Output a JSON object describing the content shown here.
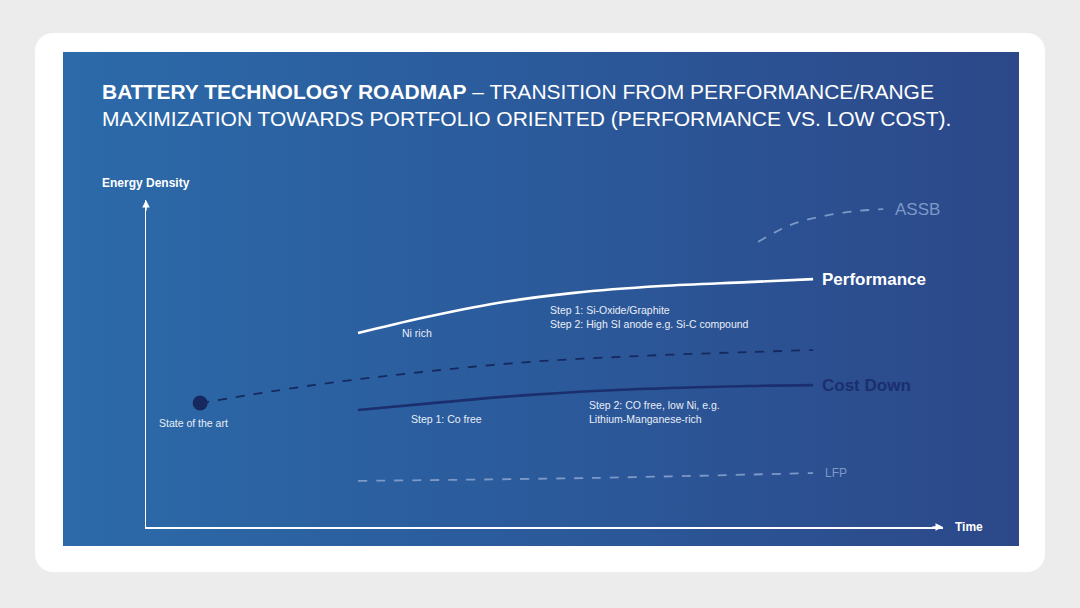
{
  "chart_data": {
    "type": "line",
    "title": "BATTERY TECHNOLOGY ROADMAP – TRANSITION FROM PERFORMANCE/RANGE\nMAXIMIZATION TOWARDS PORTFOLIO ORIENTED (PERFORMANCE VS. LOW COST).",
    "x_label": "Time",
    "y_label": "Energy Density",
    "xlim": [
      0,
      100
    ],
    "ylim": [
      0,
      100
    ],
    "xticks": [],
    "yticks": [],
    "tick_labels": false,
    "grid": false,
    "series": [
      {
        "name": "ASSB",
        "color": "#7c99c8",
        "line_style": "dashed",
        "x": [
          76.8,
          80.9,
          85.0,
          89.1,
          92.5
        ],
        "values": [
          87.2,
          92.4,
          95.1,
          96.6,
          97.2
        ]
      },
      {
        "name": "Performance",
        "color": "#ffffff",
        "line_style": "solid",
        "x": [
          26.6,
          34.6,
          44.1,
          53.7,
          64.6,
          75.5,
          83.7
        ],
        "values": [
          59.3,
          63.9,
          68.5,
          71.6,
          73.7,
          74.9,
          75.8
        ]
      },
      {
        "color": "#16295f",
        "line_style": "dashed",
        "x": [
          6.8,
          21.0,
          34.6,
          48.2,
          61.9,
          75.5,
          83.7
        ],
        "values": [
          37.9,
          43.4,
          47.4,
          50.5,
          52.3,
          53.5,
          54.1
        ]
      },
      {
        "color": "#16295f",
        "line_style": "none",
        "marker": "circle",
        "x": [
          6.8
        ],
        "values": [
          37.9
        ]
      },
      {
        "name": "Cost Down",
        "color": "#1b2f6e",
        "line_style": "solid",
        "x": [
          26.6,
          37.3,
          48.2,
          61.9,
          75.5,
          83.7
        ],
        "values": [
          35.8,
          38.2,
          40.4,
          42.2,
          43.1,
          43.4
        ]
      },
      {
        "name": "LFP",
        "color": "#7c99c8",
        "line_style": "dashed",
        "x": [
          26.6,
          55.9,
          83.7
        ],
        "values": [
          14.1,
          15.0,
          16.5
        ]
      }
    ],
    "annotations": [
      {
        "text": "Ni rich",
        "x": 31.9,
        "y": 59.3
      },
      {
        "text": "Step 1: Si-Oxide/Graphite\nStep 2: High SI anode e.g. Si-C compound",
        "x": 50.5,
        "y": 64.2
      },
      {
        "text": "Step 1: Co free",
        "x": 33.0,
        "y": 33.0
      },
      {
        "text": "Step 2: CO free, low Ni, e.g.\nLithium-Manganese-rich",
        "x": 55.3,
        "y": 35.2
      },
      {
        "text": "State of the art",
        "x": 1.4,
        "y": 31.8
      }
    ]
  }
}
